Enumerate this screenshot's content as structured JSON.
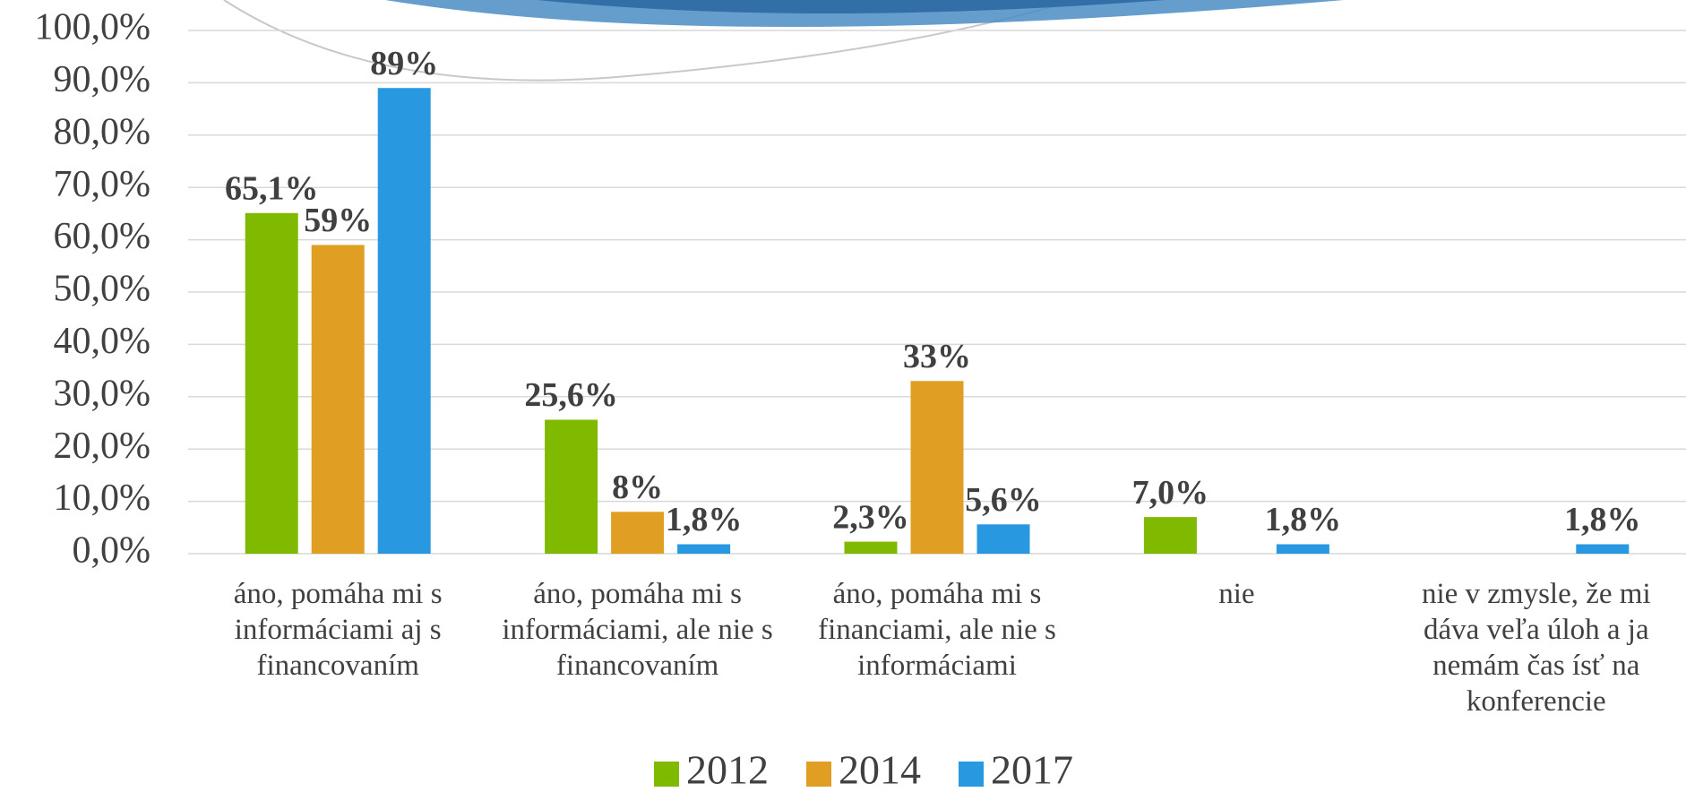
{
  "chart_data": {
    "type": "bar",
    "categories": [
      "áno, pomáha mi s informáciami aj s financovaním",
      "áno, pomáha mi s informáciami, ale nie s financovaním",
      "áno, pomáha mi s financiami, ale nie s informáciami",
      "nie",
      "nie v zmysle, že mi dáva veľa úloh a ja nemám čas ísť na konferencie"
    ],
    "series": [
      {
        "name": "2012",
        "color": "#7fba00",
        "values": [
          65.1,
          25.6,
          2.3,
          7.0,
          null
        ],
        "value_labels": [
          "65,1%",
          "25,6%",
          "2,3%",
          "7,0%",
          null
        ]
      },
      {
        "name": "2014",
        "color": "#e09e22",
        "values": [
          59,
          8,
          33,
          null,
          null
        ],
        "value_labels": [
          "59%",
          "8%",
          "33%",
          null,
          null
        ]
      },
      {
        "name": "2017",
        "color": "#2898e0",
        "values": [
          89,
          1.8,
          5.6,
          1.8,
          1.8
        ],
        "value_labels": [
          "89%",
          "1,8%",
          "5,6%",
          "1,8%",
          "1,8%"
        ]
      }
    ],
    "ylim": [
      0,
      100
    ],
    "yticks": [
      {
        "value": 0,
        "label": "0,0%"
      },
      {
        "value": 10,
        "label": "10,0%"
      },
      {
        "value": 20,
        "label": "20,0%"
      },
      {
        "value": 30,
        "label": "30,0%"
      },
      {
        "value": 40,
        "label": "40,0%"
      },
      {
        "value": 50,
        "label": "50,0%"
      },
      {
        "value": 60,
        "label": "60,0%"
      },
      {
        "value": 70,
        "label": "70,0%"
      },
      {
        "value": 80,
        "label": "80,0%"
      },
      {
        "value": 90,
        "label": "90,0%"
      },
      {
        "value": 100,
        "label": "100,0%"
      }
    ],
    "grid": true,
    "legend": "bottom"
  }
}
